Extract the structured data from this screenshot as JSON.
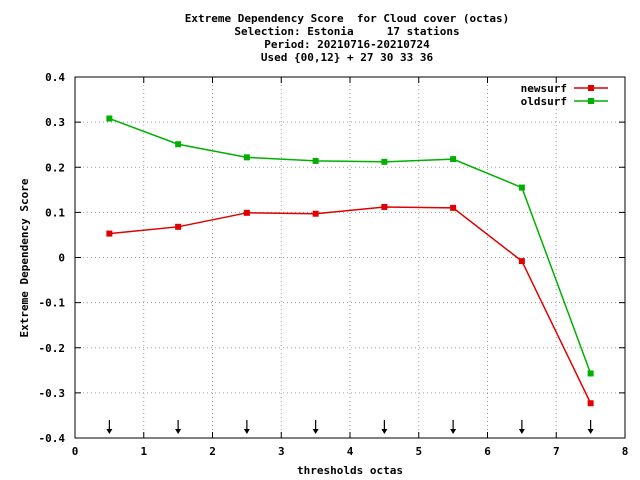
{
  "chart_data": {
    "type": "line",
    "title_lines": [
      "Extreme Dependency Score  for Cloud cover (octas)",
      "Selection: Estonia     17 stations",
      "Period: 20210716-20210724",
      "Used {00,12} + 27 30 33 36"
    ],
    "xlabel": "thresholds octas",
    "ylabel": "Extreme Dependency Score",
    "xlim": [
      0,
      8
    ],
    "ylim": [
      -0.4,
      0.4
    ],
    "xticks": [
      0,
      1,
      2,
      3,
      4,
      5,
      6,
      7,
      8
    ],
    "xtick_labels": [
      "0",
      "1",
      "2",
      "3",
      "4",
      "5",
      "6",
      "7",
      "8"
    ],
    "yticks": [
      -0.4,
      -0.3,
      -0.2,
      -0.1,
      0,
      0.1,
      0.2,
      0.3,
      0.4
    ],
    "ytick_labels": [
      "-0.4",
      "-0.3",
      "-0.2",
      "-0.1",
      "0",
      "0.1",
      "0.2",
      "0.3",
      "0.4"
    ],
    "grid": true,
    "legend_position": "top-right",
    "x": [
      0.5,
      1.5,
      2.5,
      3.5,
      4.5,
      5.5,
      6.5,
      7.5
    ],
    "series": [
      {
        "name": "newsurf",
        "color": "#e00000",
        "values": [
          0.053,
          0.068,
          0.099,
          0.097,
          0.112,
          0.11,
          -0.008,
          -0.323
        ]
      },
      {
        "name": "oldsurf",
        "color": "#00b000",
        "values": [
          0.308,
          0.251,
          0.222,
          0.214,
          0.212,
          0.218,
          0.155,
          -0.257
        ]
      }
    ],
    "arrow_markers_x": [
      0.5,
      1.5,
      2.5,
      3.5,
      4.5,
      5.5,
      6.5,
      7.5
    ]
  }
}
